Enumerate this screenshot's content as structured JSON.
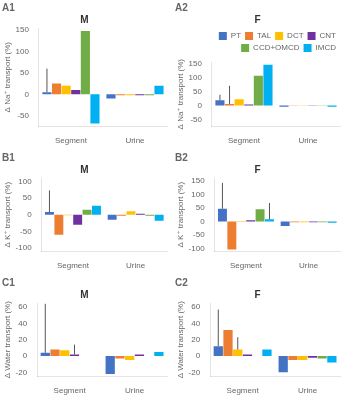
{
  "chart_data": [
    {
      "type": "bar",
      "title": "A1",
      "subtitle": "M",
      "ylabel": "Δ Na⁺ transport (%)",
      "categories": [
        "Segment",
        "Urine"
      ],
      "series": [
        {
          "name": "PT",
          "color": "#4472c4",
          "values": [
            5,
            -10
          ],
          "errors": [
            55,
            0
          ]
        },
        {
          "name": "TAL",
          "color": "#ed7d31",
          "values": [
            25,
            -2
          ],
          "errors": [
            0,
            0
          ]
        },
        {
          "name": "DCT",
          "color": "#ffc000",
          "values": [
            20,
            -2
          ],
          "errors": [
            0,
            0
          ]
        },
        {
          "name": "CNT",
          "color": "#7030a0",
          "values": [
            10,
            -2
          ],
          "errors": [
            0,
            0
          ]
        },
        {
          "name": "CCD+OMCD",
          "color": "#70ad47",
          "values": [
            148,
            -2
          ],
          "errors": [
            0,
            0
          ]
        },
        {
          "name": "IMCD",
          "color": "#00b0f0",
          "values": [
            -68,
            20
          ],
          "errors": [
            0,
            0
          ]
        }
      ],
      "ylim": [
        -75,
        155
      ],
      "yticks": [
        -50,
        0,
        50,
        100,
        150
      ],
      "grid": false
    },
    {
      "type": "bar",
      "title": "A2",
      "subtitle": "F",
      "ylabel": "Δ Na⁺ transport (%)",
      "categories": [
        "Segment",
        "Urine"
      ],
      "series": [
        {
          "name": "PT",
          "color": "#4472c4",
          "values": [
            18,
            -5
          ],
          "errors": [
            20,
            0
          ]
        },
        {
          "name": "TAL",
          "color": "#ed7d31",
          "values": [
            5,
            -1
          ],
          "errors": [
            65,
            0
          ]
        },
        {
          "name": "DCT",
          "color": "#ffc000",
          "values": [
            22,
            -1
          ],
          "errors": [
            0,
            0
          ]
        },
        {
          "name": "CNT",
          "color": "#7030a0",
          "values": [
            3,
            -1
          ],
          "errors": [
            0,
            0
          ]
        },
        {
          "name": "CCD+OMCD",
          "color": "#70ad47",
          "values": [
            106,
            -1
          ],
          "errors": [
            0,
            0
          ]
        },
        {
          "name": "IMCD",
          "color": "#00b0f0",
          "values": [
            145,
            -5
          ],
          "errors": [
            0,
            0
          ]
        }
      ],
      "ylim": [
        -75,
        155
      ],
      "yticks": [
        -50,
        0,
        50,
        100,
        150
      ],
      "grid": false,
      "legend": "upper right"
    },
    {
      "type": "bar",
      "title": "B1",
      "subtitle": "M",
      "ylabel": "Δ K⁺ transport (%)",
      "categories": [
        "Segment",
        "Urine"
      ],
      "series": [
        {
          "name": "PT",
          "color": "#4472c4",
          "values": [
            8,
            -15
          ],
          "errors": [
            65,
            0
          ]
        },
        {
          "name": "TAL",
          "color": "#ed7d31",
          "values": [
            -60,
            -3
          ],
          "errors": [
            0,
            0
          ]
        },
        {
          "name": "DCT",
          "color": "#ffc000",
          "values": [
            -2,
            10
          ],
          "errors": [
            0,
            0
          ]
        },
        {
          "name": "CNT",
          "color": "#7030a0",
          "values": [
            -30,
            3
          ],
          "errors": [
            0,
            0
          ]
        },
        {
          "name": "CCD+OMCD",
          "color": "#70ad47",
          "values": [
            15,
            -3
          ],
          "errors": [
            0,
            0
          ]
        },
        {
          "name": "IMCD",
          "color": "#00b0f0",
          "values": [
            27,
            -18
          ],
          "errors": [
            0,
            0
          ]
        }
      ],
      "ylim": [
        -110,
        110
      ],
      "yticks": [
        -100,
        -50,
        0,
        50,
        100
      ],
      "grid": false
    },
    {
      "type": "bar",
      "title": "B2",
      "subtitle": "F",
      "ylabel": "Δ K⁺ transport (%)",
      "categories": [
        "Segment",
        "Urine"
      ],
      "series": [
        {
          "name": "PT",
          "color": "#4472c4",
          "values": [
            47,
            -17
          ],
          "errors": [
            95,
            0
          ]
        },
        {
          "name": "TAL",
          "color": "#ed7d31",
          "values": [
            -103,
            -3
          ],
          "errors": [
            0,
            0
          ]
        },
        {
          "name": "DCT",
          "color": "#ffc000",
          "values": [
            -2,
            -3
          ],
          "errors": [
            0,
            0
          ]
        },
        {
          "name": "CNT",
          "color": "#7030a0",
          "values": [
            5,
            -3
          ],
          "errors": [
            0,
            0
          ]
        },
        {
          "name": "CCD+OMCD",
          "color": "#70ad47",
          "values": [
            45,
            -3
          ],
          "errors": [
            0,
            0
          ]
        },
        {
          "name": "IMCD",
          "color": "#00b0f0",
          "values": [
            8,
            -5
          ],
          "errors": [
            60,
            0
          ]
        }
      ],
      "ylim": [
        -110,
        160
      ],
      "yticks": [
        -100,
        -50,
        0,
        50,
        100,
        150
      ],
      "grid": false
    },
    {
      "type": "bar",
      "title": "C1",
      "subtitle": "M",
      "ylabel": "Δ Water transport (%)",
      "categories": [
        "Segment",
        "Urine"
      ],
      "series": [
        {
          "name": "PT",
          "color": "#4472c4",
          "values": [
            4,
            -22
          ],
          "errors": [
            60,
            0
          ]
        },
        {
          "name": "TAL",
          "color": "#ed7d31",
          "values": [
            8,
            -3
          ],
          "errors": [
            0,
            0
          ]
        },
        {
          "name": "DCT",
          "color": "#ffc000",
          "values": [
            7,
            -5
          ],
          "errors": [
            0,
            0
          ]
        },
        {
          "name": "CNT",
          "color": "#7030a0",
          "values": [
            2,
            2
          ],
          "errors": [
            12,
            0
          ]
        },
        {
          "name": "CCD+OMCD",
          "color": "#70ad47",
          "values": [
            0,
            0
          ],
          "errors": [
            0,
            0
          ]
        },
        {
          "name": "IMCD",
          "color": "#00b0f0",
          "values": [
            0,
            5
          ],
          "errors": [
            0,
            0
          ]
        }
      ],
      "ylim": [
        -25,
        65
      ],
      "yticks": [
        -20,
        0,
        20,
        40,
        60
      ],
      "grid": false
    },
    {
      "type": "bar",
      "title": "C2",
      "subtitle": "F",
      "ylabel": "Δ Water transport (%)",
      "categories": [
        "Segment",
        "Urine"
      ],
      "series": [
        {
          "name": "PT",
          "color": "#4472c4",
          "values": [
            12,
            -20
          ],
          "errors": [
            45,
            0
          ]
        },
        {
          "name": "TAL",
          "color": "#ed7d31",
          "values": [
            32,
            -5
          ],
          "errors": [
            0,
            0
          ]
        },
        {
          "name": "DCT",
          "color": "#ffc000",
          "values": [
            8,
            -5
          ],
          "errors": [
            15,
            0
          ]
        },
        {
          "name": "CNT",
          "color": "#7030a0",
          "values": [
            2,
            -2
          ],
          "errors": [
            0,
            0
          ]
        },
        {
          "name": "CCD+OMCD",
          "color": "#70ad47",
          "values": [
            0,
            -3
          ],
          "errors": [
            0,
            0
          ]
        },
        {
          "name": "IMCD",
          "color": "#00b0f0",
          "values": [
            8,
            -8
          ],
          "errors": [
            0,
            0
          ]
        }
      ],
      "ylim": [
        -25,
        65
      ],
      "yticks": [
        -20,
        0,
        20,
        40,
        60
      ],
      "grid": false
    }
  ]
}
